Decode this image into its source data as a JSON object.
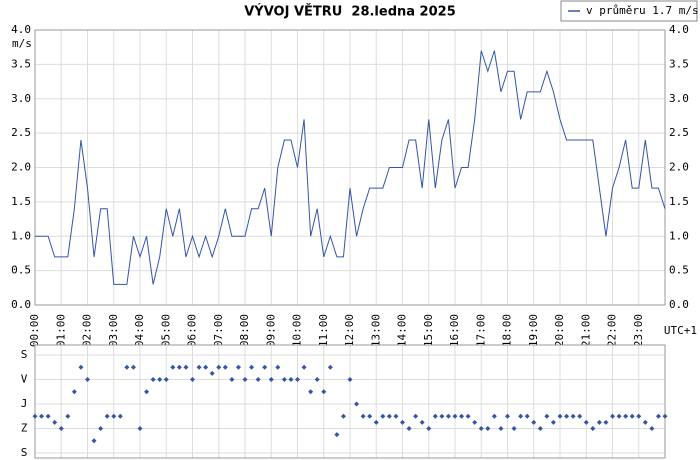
{
  "chart_data": [
    {
      "type": "line",
      "title": "VÝVOJ VĚTRU  28.ledna 2025",
      "y_unit": "m/s",
      "x_label": "UTC+1",
      "grid": true,
      "x": [
        0,
        0.25,
        0.5,
        0.75,
        1,
        1.25,
        1.5,
        1.75,
        2,
        2.25,
        2.5,
        2.75,
        3,
        3.25,
        3.5,
        3.75,
        4,
        4.25,
        4.5,
        4.75,
        5,
        5.25,
        5.5,
        5.75,
        6,
        6.25,
        6.5,
        6.75,
        7,
        7.25,
        7.5,
        7.75,
        8,
        8.25,
        8.5,
        8.75,
        9,
        9.25,
        9.5,
        9.75,
        10,
        10.25,
        10.5,
        10.75,
        11,
        11.25,
        11.5,
        11.75,
        12,
        12.25,
        12.5,
        12.75,
        13,
        13.25,
        13.5,
        13.75,
        14,
        14.25,
        14.5,
        14.75,
        15,
        15.25,
        15.5,
        15.75,
        16,
        16.25,
        16.5,
        16.75,
        17,
        17.25,
        17.5,
        17.75,
        18,
        18.25,
        18.5,
        18.75,
        19,
        19.25,
        19.5,
        19.75,
        20,
        20.25,
        20.5,
        20.75,
        21,
        21.25,
        21.5,
        21.75,
        22,
        22.25,
        22.5,
        22.75,
        23,
        23.25,
        23.5,
        23.75,
        24
      ],
      "series": [
        {
          "name": "v průměru 1.7 m/s",
          "color": "#3355aa",
          "values": [
            1.0,
            1.0,
            1.0,
            0.7,
            0.7,
            0.7,
            1.4,
            2.4,
            1.7,
            0.7,
            1.4,
            1.4,
            0.3,
            0.3,
            0.3,
            1.0,
            0.7,
            1.0,
            0.3,
            0.7,
            1.4,
            1.0,
            1.4,
            0.7,
            1.0,
            0.7,
            1.0,
            0.7,
            1.0,
            1.4,
            1.0,
            1.0,
            1.0,
            1.4,
            1.4,
            1.7,
            1.0,
            2.0,
            2.4,
            2.4,
            2.0,
            2.7,
            1.0,
            1.4,
            0.7,
            1.0,
            0.7,
            0.7,
            1.7,
            1.0,
            1.4,
            1.7,
            1.7,
            1.7,
            2.0,
            2.0,
            2.0,
            2.4,
            2.4,
            1.7,
            2.7,
            1.7,
            2.4,
            2.7,
            1.7,
            2.0,
            2.0,
            2.7,
            3.7,
            3.4,
            3.7,
            3.1,
            3.4,
            3.4,
            2.7,
            3.1,
            3.1,
            3.1,
            3.4,
            3.1,
            2.7,
            2.4,
            2.4,
            2.4,
            2.4,
            2.4,
            1.7,
            1.0,
            1.7,
            2.0,
            2.4,
            1.7,
            1.7,
            2.4,
            1.7,
            1.7,
            1.4
          ]
        }
      ],
      "xlim": [
        0,
        24
      ],
      "xticks": [
        {
          "value": 0,
          "label": "00:00"
        },
        {
          "value": 1,
          "label": "01:00"
        },
        {
          "value": 2,
          "label": "02:00"
        },
        {
          "value": 3,
          "label": "03:00"
        },
        {
          "value": 4,
          "label": "04:00"
        },
        {
          "value": 5,
          "label": "05:00"
        },
        {
          "value": 6,
          "label": "06:00"
        },
        {
          "value": 7,
          "label": "07:00"
        },
        {
          "value": 8,
          "label": "08:00"
        },
        {
          "value": 9,
          "label": "09:00"
        },
        {
          "value": 10,
          "label": "10:00"
        },
        {
          "value": 11,
          "label": "11:00"
        },
        {
          "value": 12,
          "label": "12:00"
        },
        {
          "value": 13,
          "label": "13:00"
        },
        {
          "value": 14,
          "label": "14:00"
        },
        {
          "value": 15,
          "label": "15:00"
        },
        {
          "value": 16,
          "label": "16:00"
        },
        {
          "value": 17,
          "label": "17:00"
        },
        {
          "value": 18,
          "label": "18:00"
        },
        {
          "value": 19,
          "label": "19:00"
        },
        {
          "value": 20,
          "label": "20:00"
        },
        {
          "value": 21,
          "label": "21:00"
        },
        {
          "value": 22,
          "label": "22:00"
        },
        {
          "value": 23,
          "label": "23:00"
        }
      ],
      "ylim": [
        0,
        4
      ],
      "yticks": [
        {
          "value": 0,
          "label": "0.0"
        },
        0.5,
        {
          "value": 1,
          "label": "1.0"
        },
        1.5,
        {
          "value": 2,
          "label": "2.0"
        },
        2.5,
        {
          "value": 3,
          "label": "3.0"
        },
        3.5,
        {
          "value": 4,
          "label": "4.0"
        }
      ]
    },
    {
      "type": "scatter",
      "color": "#3355aa",
      "grid": true,
      "xlim": [
        0,
        24
      ],
      "x": [
        0,
        0.25,
        0.5,
        0.75,
        1,
        1.25,
        1.5,
        1.75,
        2,
        2.25,
        2.5,
        2.75,
        3,
        3.25,
        3.5,
        3.75,
        4,
        4.25,
        4.5,
        4.75,
        5,
        5.25,
        5.5,
        5.75,
        6,
        6.25,
        6.5,
        6.75,
        7,
        7.25,
        7.5,
        7.75,
        8,
        8.25,
        8.5,
        8.75,
        9,
        9.25,
        9.5,
        9.75,
        10,
        10.25,
        10.5,
        10.75,
        11,
        11.25,
        11.5,
        11.75,
        12,
        12.25,
        12.5,
        12.75,
        13,
        13.25,
        13.5,
        13.75,
        14,
        14.25,
        14.5,
        14.75,
        15,
        15.25,
        15.5,
        15.75,
        16,
        16.25,
        16.5,
        16.75,
        17,
        17.25,
        17.5,
        17.75,
        18,
        18.25,
        18.5,
        18.75,
        19,
        19.25,
        19.5,
        19.75,
        20,
        20.25,
        20.5,
        20.75,
        21,
        21.25,
        21.5,
        21.75,
        22,
        22.25,
        22.5,
        22.75,
        23,
        23.25,
        23.5,
        23.75,
        24
      ],
      "values": [
        225,
        225,
        225,
        247.5,
        270,
        225,
        135,
        45,
        90,
        315,
        270,
        225,
        225,
        225,
        45,
        45,
        270,
        135,
        90,
        90,
        90,
        45,
        45,
        45,
        90,
        45,
        45,
        67.5,
        45,
        45,
        90,
        45,
        90,
        45,
        90,
        45,
        90,
        45,
        90,
        90,
        90,
        45,
        135,
        90,
        135,
        45,
        292.5,
        225,
        90,
        180,
        225,
        225,
        247.5,
        225,
        225,
        225,
        247.5,
        270,
        225,
        247.5,
        270,
        225,
        225,
        225,
        225,
        225,
        225,
        247.5,
        270,
        270,
        225,
        270,
        225,
        270,
        225,
        225,
        247.5,
        270,
        225,
        247.5,
        225,
        225,
        225,
        225,
        247.5,
        270,
        247.5,
        247.5,
        225,
        225,
        225,
        225,
        225,
        247.5,
        270,
        225,
        225
      ],
      "ylim": [
        0,
        360
      ],
      "yticks": [
        {
          "value": 0,
          "label": "S"
        },
        {
          "value": 90,
          "label": "V"
        },
        {
          "value": 180,
          "label": "J"
        },
        {
          "value": 270,
          "label": "Z"
        },
        {
          "value": 360,
          "label": "S"
        }
      ]
    }
  ]
}
